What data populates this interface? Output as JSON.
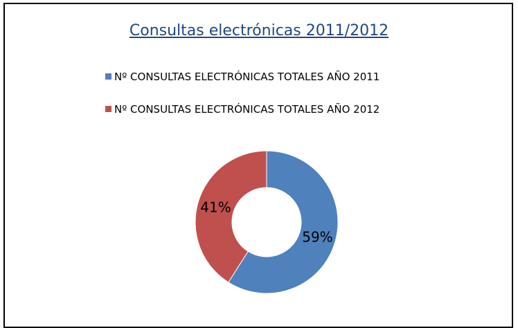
{
  "chart_data": {
    "type": "pie",
    "subtype": "doughnut",
    "title": "Consultas electrónicas 2011/2012",
    "legend_position": "top",
    "series": [
      {
        "name": "Nº CONSULTAS ELECTRÓNICAS TOTALES AÑO 2011",
        "value": 59,
        "label": "59%",
        "color": "#4f81bd"
      },
      {
        "name": "Nº CONSULTAS ELECTRÓNICAS TOTALES AÑO 2012",
        "value": 41,
        "label": "41%",
        "color": "#c0504d"
      }
    ]
  }
}
